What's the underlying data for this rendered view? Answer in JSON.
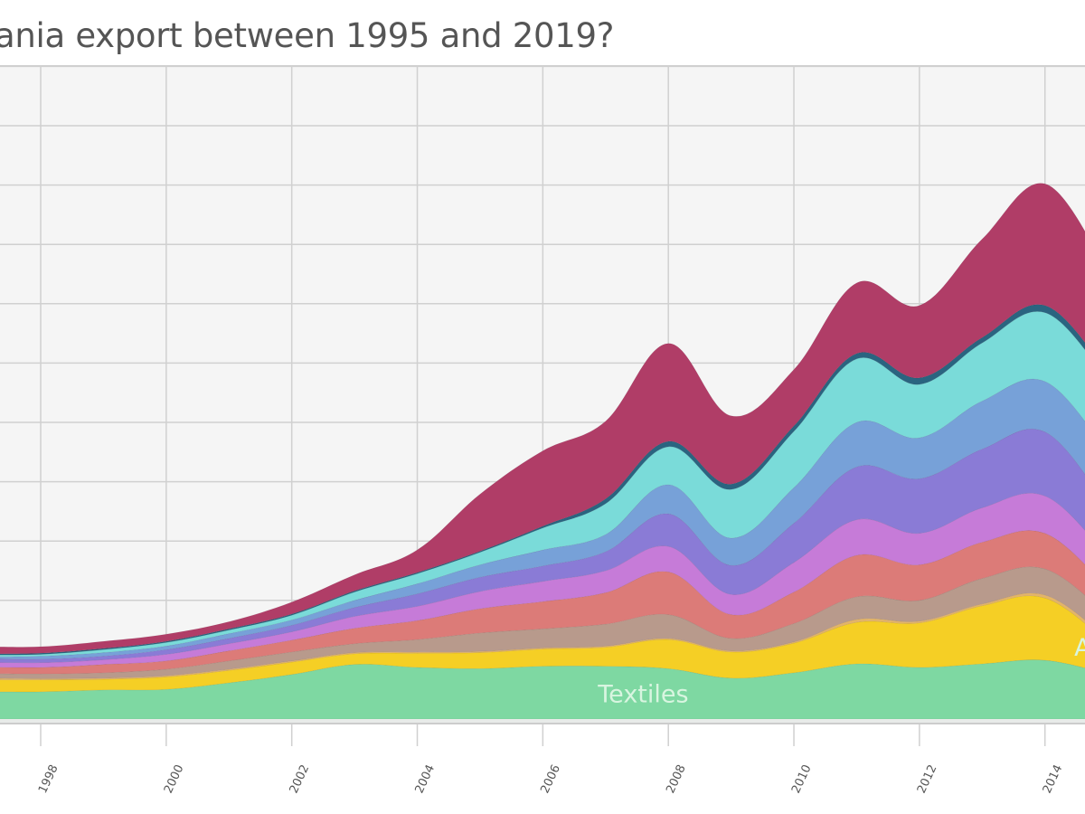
{
  "title": "ania export between 1995 and 2019?",
  "chart_data": {
    "type": "area",
    "stacked": true,
    "title": "ania export between 1995 and 2019?",
    "xlabel": "",
    "ylabel": "",
    "x": [
      1997,
      1998,
      1999,
      2000,
      2001,
      2002,
      2003,
      2004,
      2005,
      2006,
      2007,
      2008,
      2009,
      2010,
      2011,
      2012,
      2013,
      2014,
      2015
    ],
    "x_visible_range": [
      1997.35,
      2014.65
    ],
    "x_ticks": [
      1998,
      2000,
      2002,
      2004,
      2006,
      2008,
      2010,
      2012,
      2014
    ],
    "x_tick_labels": [
      "1998",
      "2000",
      "2002",
      "2004",
      "2006",
      "2008",
      "2010",
      "2012",
      "2014"
    ],
    "y_range_units": [
      0,
      11.1
    ],
    "y_gridlines": [
      1,
      2,
      3,
      4,
      5,
      6,
      7,
      8,
      9,
      10,
      11
    ],
    "y_tick_labels_visible": false,
    "grid": true,
    "series": [
      {
        "name": "Textiles",
        "color": "#7ed8a2",
        "values": [
          0.46,
          0.46,
          0.49,
          0.5,
          0.61,
          0.75,
          0.92,
          0.87,
          0.85,
          0.89,
          0.89,
          0.85,
          0.69,
          0.78,
          0.93,
          0.87,
          0.93,
          0.99,
          0.76
        ]
      },
      {
        "name": "A",
        "color": "#f5cf25",
        "values": [
          0.2,
          0.2,
          0.18,
          0.21,
          0.21,
          0.21,
          0.18,
          0.24,
          0.27,
          0.29,
          0.32,
          0.49,
          0.44,
          0.5,
          0.7,
          0.75,
          0.98,
          1.05,
          0.53
        ]
      },
      {
        "name": "",
        "color": "#e3b46a",
        "values": [
          0.03,
          0.02,
          0.02,
          0.02,
          0.02,
          0.02,
          0.02,
          0.02,
          0.02,
          0.02,
          0.02,
          0.02,
          0.02,
          0.02,
          0.05,
          0.03,
          0.03,
          0.05,
          0.06
        ]
      },
      {
        "name": "",
        "color": "#b89a8c",
        "values": [
          0.08,
          0.08,
          0.09,
          0.11,
          0.14,
          0.15,
          0.15,
          0.21,
          0.31,
          0.32,
          0.37,
          0.4,
          0.21,
          0.31,
          0.38,
          0.35,
          0.43,
          0.44,
          0.4
        ]
      },
      {
        "name": "",
        "color": "#dc7b78",
        "values": [
          0.11,
          0.11,
          0.14,
          0.14,
          0.17,
          0.2,
          0.26,
          0.32,
          0.41,
          0.46,
          0.53,
          0.72,
          0.4,
          0.53,
          0.7,
          0.6,
          0.61,
          0.6,
          0.46
        ]
      },
      {
        "name": "",
        "color": "#c67bd8",
        "values": [
          0.08,
          0.08,
          0.08,
          0.11,
          0.12,
          0.14,
          0.2,
          0.24,
          0.29,
          0.34,
          0.37,
          0.43,
          0.34,
          0.5,
          0.6,
          0.53,
          0.58,
          0.63,
          0.53
        ]
      },
      {
        "name": "",
        "color": "#8a7bd6",
        "values": [
          0.06,
          0.06,
          0.06,
          0.08,
          0.09,
          0.11,
          0.15,
          0.21,
          0.24,
          0.26,
          0.32,
          0.55,
          0.49,
          0.66,
          0.89,
          0.92,
          0.99,
          1.08,
          0.84
        ]
      },
      {
        "name": "",
        "color": "#77a1d8",
        "values": [
          0.03,
          0.05,
          0.06,
          0.06,
          0.08,
          0.09,
          0.12,
          0.17,
          0.21,
          0.27,
          0.29,
          0.49,
          0.46,
          0.6,
          0.75,
          0.69,
          0.81,
          0.85,
          0.92
        ]
      },
      {
        "name": "",
        "color": "#7adbd9",
        "values": [
          0.03,
          0.03,
          0.05,
          0.06,
          0.06,
          0.08,
          0.14,
          0.17,
          0.21,
          0.37,
          0.52,
          0.64,
          0.82,
          0.95,
          1.07,
          0.9,
          0.98,
          1.16,
          1.22
        ]
      },
      {
        "name": "",
        "color": "#2a6480",
        "values": [
          0.02,
          0.02,
          0.02,
          0.02,
          0.02,
          0.02,
          0.02,
          0.02,
          0.02,
          0.03,
          0.08,
          0.09,
          0.09,
          0.09,
          0.09,
          0.11,
          0.09,
          0.12,
          0.12
        ]
      },
      {
        "name": "",
        "color": "#b03d67",
        "values": [
          0.12,
          0.11,
          0.12,
          0.12,
          0.12,
          0.2,
          0.27,
          0.38,
          0.96,
          1.27,
          1.31,
          1.65,
          1.15,
          0.95,
          1.19,
          1.22,
          1.66,
          2.05,
          1.71
        ]
      }
    ],
    "annotations": [
      {
        "text": "Textiles",
        "series": "Textiles",
        "x": 2007.6
      },
      {
        "text": "A",
        "series": "A",
        "x": 2014.6
      }
    ],
    "legend": "none"
  },
  "colors": {
    "plot_background": "#f5f5f5",
    "gridline": "#d0d0d0",
    "title": "#555555",
    "tick_label": "#555555"
  }
}
